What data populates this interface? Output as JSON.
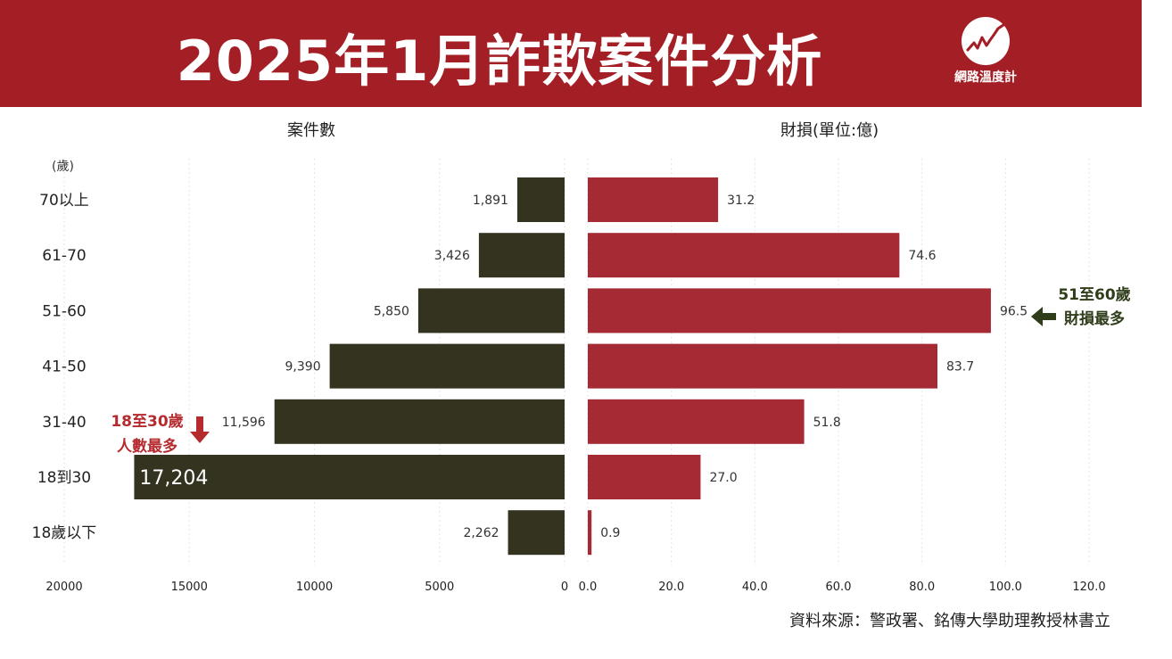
{
  "header": {
    "title": "2025年1月詐欺案件分析",
    "logo_text": "網路溫度計",
    "bg_color": "#a41f25"
  },
  "chart_data": [
    {
      "type": "bar",
      "orientation": "horizontal",
      "title": "案件數",
      "categories": [
        "70以上",
        "61-70",
        "51-60",
        "41-50",
        "31-40",
        "18到30",
        "18歲以下"
      ],
      "category_axis_label": "(歲)",
      "values": [
        1891,
        3426,
        5850,
        9390,
        11596,
        17204,
        2262
      ],
      "value_labels": [
        "1,891",
        "3,426",
        "5,850",
        "9,390",
        "11,596",
        "17,204",
        "2,262"
      ],
      "xlim": [
        20000,
        0
      ],
      "xticks": [
        "20000",
        "15000",
        "10000",
        "5000",
        "0"
      ],
      "color": "#34331f",
      "grid": true
    },
    {
      "type": "bar",
      "orientation": "horizontal",
      "title": "財損(單位:億)",
      "categories": [
        "70以上",
        "61-70",
        "51-60",
        "41-50",
        "31-40",
        "18到30",
        "18歲以下"
      ],
      "values": [
        31.2,
        74.6,
        96.5,
        83.7,
        51.8,
        27.0,
        0.9
      ],
      "value_labels": [
        "31.2",
        "74.6",
        "96.5",
        "83.7",
        "51.8",
        "27.0",
        "0.9"
      ],
      "xlim": [
        0,
        120
      ],
      "xticks": [
        "0.0",
        "20.0",
        "40.0",
        "60.0",
        "80.0",
        "100.0",
        "120.0"
      ],
      "color": "#a52a33",
      "grid": true
    }
  ],
  "annotations": {
    "left": {
      "line1": "18至30歲",
      "line2": "人數最多",
      "color": "#b52a2f"
    },
    "right": {
      "line1": "51至60歲",
      "line2": "財損最多",
      "color": "#2f3d1a"
    }
  },
  "source": "資料來源：警政署、銘傳大學助理教授林書立"
}
